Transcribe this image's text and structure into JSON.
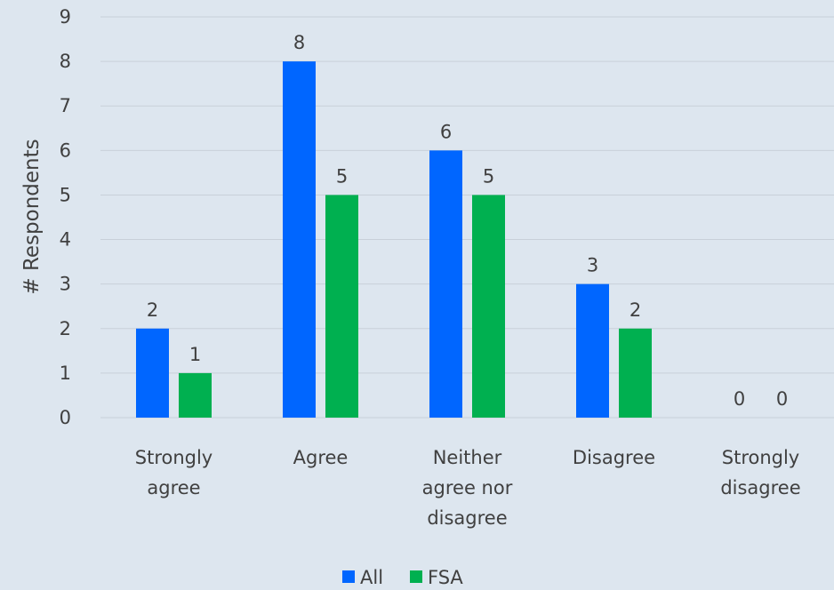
{
  "chart_data": {
    "type": "bar",
    "ylabel": "# Respondents",
    "xlabel": "",
    "ylim": [
      0,
      9
    ],
    "yticks": [
      0,
      1,
      2,
      3,
      4,
      5,
      6,
      7,
      8,
      9
    ],
    "grid": true,
    "legend_position": "bottom",
    "categories": [
      [
        "Strongly",
        "agree"
      ],
      [
        "Agree"
      ],
      [
        "Neither",
        "agree nor",
        "disagree"
      ],
      [
        "Disagree"
      ],
      [
        "Strongly",
        "disagree"
      ]
    ],
    "series": [
      {
        "name": "All",
        "color": "#0066ff",
        "values": [
          2,
          8,
          6,
          3,
          0
        ]
      },
      {
        "name": "FSA",
        "color": "#00b050",
        "values": [
          1,
          5,
          5,
          2,
          0
        ]
      }
    ]
  }
}
